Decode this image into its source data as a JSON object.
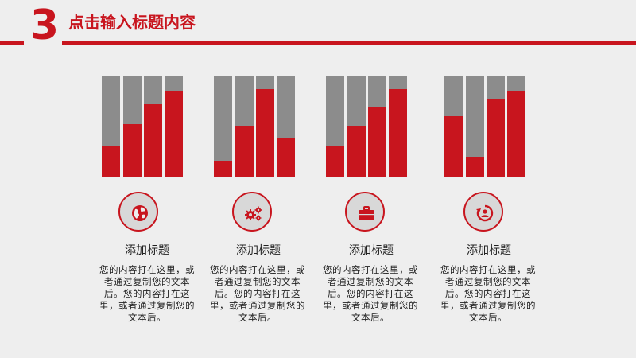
{
  "header": {
    "number": "3",
    "title": "点击输入标题内容"
  },
  "colors": {
    "accent": "#c8151e",
    "bar_bg": "#8c8c8c",
    "background": "#eeeeee"
  },
  "cards": [
    {
      "icon": "globe-icon",
      "title": "添加标题",
      "body": "您的内容打在这里，或者通过复制您的文本后。您的内容打在这里，或者通过复制您的文本后。",
      "bars": [
        0.3,
        0.52,
        0.72,
        0.86
      ]
    },
    {
      "icon": "gears-icon",
      "title": "添加标题",
      "body": "您的内容打在这里，或者通过复制您的文本后。您的内容打在这里，或者通过复制您的文本后。",
      "bars": [
        0.16,
        0.51,
        0.87,
        0.38
      ]
    },
    {
      "icon": "briefcase-icon",
      "title": "添加标题",
      "body": "您的内容打在这里，或者通过复制您的文本后。您的内容打在这里，或者通过复制您的文本后。",
      "bars": [
        0.3,
        0.51,
        0.7,
        0.87
      ]
    },
    {
      "icon": "refresh-person-icon",
      "title": "添加标题",
      "body": "您的内容打在这里，或者通过复制您的文本后。您的内容打在这里，或者通过复制您的文本后。",
      "bars": [
        0.6,
        0.2,
        0.78,
        0.86
      ]
    }
  ]
}
